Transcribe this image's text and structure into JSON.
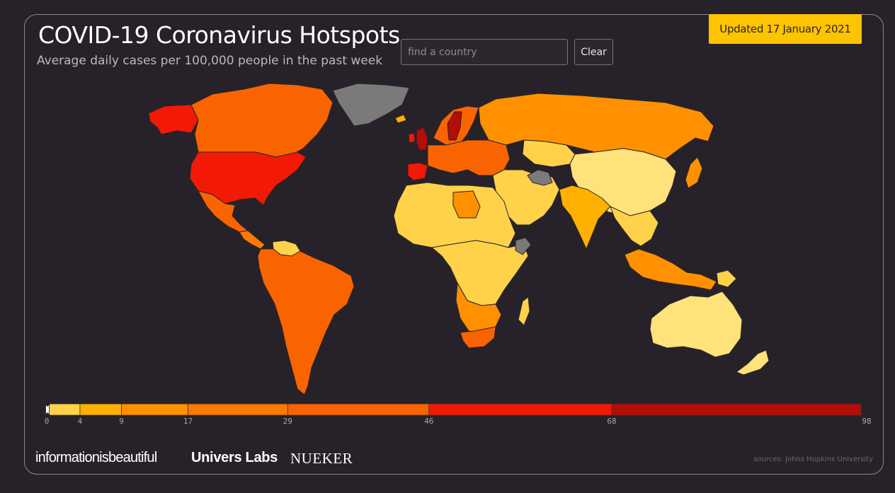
{
  "header": {
    "title": "COVID-19 Coronavirus Hotspots",
    "subtitle": "Average daily cases per 100,000 people in the past week",
    "updated_label": "Updated 17 January 2021"
  },
  "search": {
    "placeholder": "find a country",
    "value": "",
    "clear_label": "Clear"
  },
  "legend": {
    "ticks": [
      "0",
      "4",
      "9",
      "17",
      "29",
      "46",
      "68",
      "98"
    ],
    "bins": [
      {
        "from": 0,
        "to": 4,
        "color": "#ffd24a"
      },
      {
        "from": 4,
        "to": 9,
        "color": "#ffb000"
      },
      {
        "from": 9,
        "to": 17,
        "color": "#ff9100"
      },
      {
        "from": 17,
        "to": 29,
        "color": "#ff7a00"
      },
      {
        "from": 29,
        "to": 46,
        "color": "#fa6400"
      },
      {
        "from": 46,
        "to": 68,
        "color": "#f21a06"
      },
      {
        "from": 68,
        "to": 98,
        "color": "#b40d05"
      }
    ],
    "no_data_color": "#7a7a7a",
    "selected_min": 0
  },
  "map": {
    "regions": [
      {
        "name": "Alaska",
        "color": "#f21a06"
      },
      {
        "name": "Canada",
        "color": "#fa6400"
      },
      {
        "name": "Greenland",
        "color": "#7a7a7a"
      },
      {
        "name": "United States",
        "color": "#f21a06"
      },
      {
        "name": "Mexico",
        "color": "#fa6400"
      },
      {
        "name": "Central America",
        "color": "#ff7a00"
      },
      {
        "name": "Venezuela",
        "color": "#ffd24a"
      },
      {
        "name": "South America",
        "color": "#fa6400"
      },
      {
        "name": "Iceland",
        "color": "#ffb000"
      },
      {
        "name": "United Kingdom",
        "color": "#b40d05"
      },
      {
        "name": "Ireland",
        "color": "#f21a06"
      },
      {
        "name": "Scandinavia",
        "color": "#fa6400"
      },
      {
        "name": "Sweden",
        "color": "#b40d05"
      },
      {
        "name": "Spain",
        "color": "#f21a06"
      },
      {
        "name": "Europe",
        "color": "#fa6400"
      },
      {
        "name": "Russia",
        "color": "#ff9100"
      },
      {
        "name": "Kazakhstan",
        "color": "#ffd24a"
      },
      {
        "name": "Middle East",
        "color": "#ffd24a"
      },
      {
        "name": "Iran",
        "color": "#7a7a7a"
      },
      {
        "name": "India",
        "color": "#ffb000"
      },
      {
        "name": "China",
        "color": "#ffe27a"
      },
      {
        "name": "Japan",
        "color": "#ff9100"
      },
      {
        "name": "Southeast Asia",
        "color": "#ffd24a"
      },
      {
        "name": "Indonesia",
        "color": "#ff9100"
      },
      {
        "name": "North Africa",
        "color": "#ffd24a"
      },
      {
        "name": "Libya",
        "color": "#ff9100"
      },
      {
        "name": "Central Africa",
        "color": "#ffd24a"
      },
      {
        "name": "Southern Africa",
        "color": "#ff9100"
      },
      {
        "name": "South Africa",
        "color": "#fa6400"
      },
      {
        "name": "Madagascar",
        "color": "#ffd24a"
      },
      {
        "name": "Somalia",
        "color": "#7a7a7a"
      },
      {
        "name": "Australia",
        "color": "#ffe27a"
      },
      {
        "name": "New Zealand",
        "color": "#ffe27a"
      },
      {
        "name": "Papua New Guinea",
        "color": "#ffd24a"
      }
    ]
  },
  "footer": {
    "brand1": "informationisbeautiful",
    "brand2": "Univers Labs",
    "brand3": "NUEKER",
    "sources": "sources: Johns Hopkins University"
  }
}
